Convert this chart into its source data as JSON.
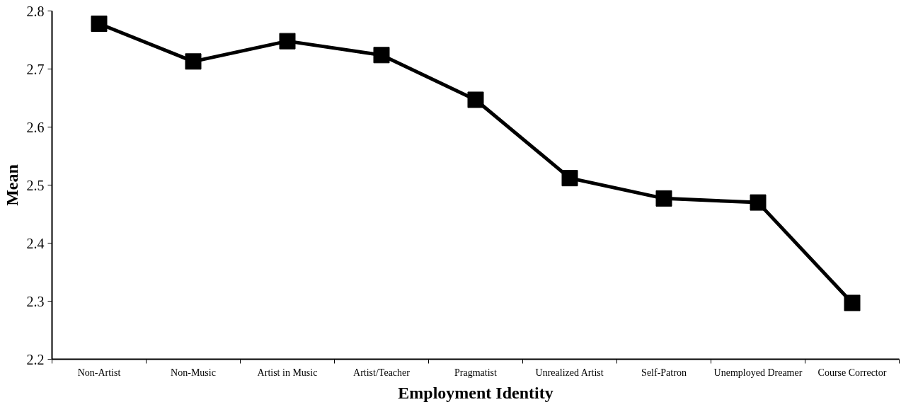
{
  "chart_data": {
    "type": "line",
    "xlabel": "Employment Identity",
    "ylabel": "Mean",
    "categories": [
      "Non-Artist",
      "Non-Music",
      "Artist in Music",
      "Artist/Teacher",
      "Pragmatist",
      "Unrealized Artist",
      "Self-Patron",
      "Unemployed Dreamer",
      "Course Corrector"
    ],
    "series": [
      {
        "color": "#000000",
        "values": [
          2.778,
          2.713,
          2.748,
          2.724,
          2.647,
          2.512,
          2.477,
          2.47,
          2.297
        ]
      }
    ],
    "ylim": [
      2.2,
      2.8
    ],
    "yticks": [
      2.2,
      2.3,
      2.4,
      2.5,
      2.6,
      2.7,
      2.8
    ],
    "grid": false,
    "marker": "square",
    "line_style": "solid"
  }
}
